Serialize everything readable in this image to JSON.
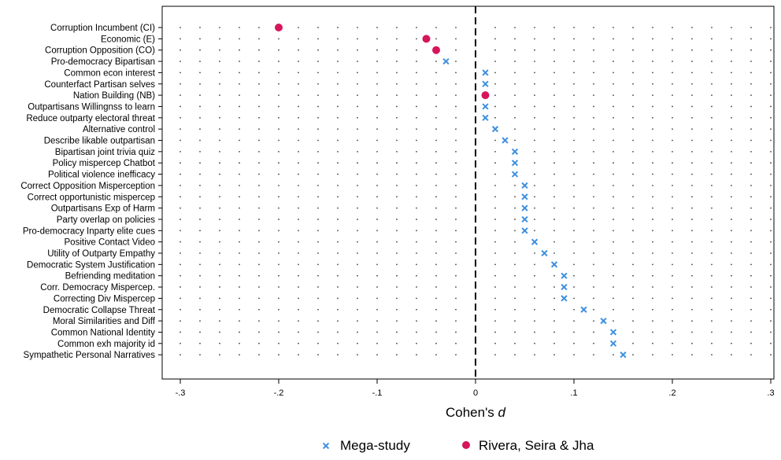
{
  "chart_data": {
    "type": "scatter",
    "title": "",
    "xlabel": "Cohen's d",
    "ylabel": "",
    "xlim": [
      -0.3,
      0.3
    ],
    "x_ticks": [
      -0.3,
      -0.2,
      -0.1,
      0,
      0.1,
      0.2,
      0.3
    ],
    "x_tick_labels": [
      "-.3",
      "-.2",
      "-.1",
      "0",
      ".1",
      ".2",
      ".3"
    ],
    "reference_line": 0,
    "grid": true,
    "legend_position": "bottom",
    "categories": [
      "Corruption Incumbent (CI)",
      "Economic (E)",
      "Corruption Opposition (CO)",
      "Pro-democracy Bipartisan",
      "Common econ interest",
      "Counterfact Partisan selves",
      "Nation Building (NB)",
      "Outpartisans Willingnss to learn",
      "Reduce outparty electoral threat",
      "Alternative control",
      "Describe likable outpartisan",
      "Bipartisan joint trivia quiz",
      "Policy mispercep Chatbot",
      "Political violence inefficacy",
      "Correct Opposition Misperception",
      "Correct opportunistic mispercep",
      "Outpartisans Exp of Harm",
      "Party overlap on policies",
      "Pro-democracy Inparty elite cues",
      "Positive Contact Video",
      "Utility of Outparty Empathy",
      "Democratic System Justification",
      "Befriending meditation",
      "Corr. Democracy Mispercep.",
      "Correcting Div Mispercep",
      "Democratic Collapse Threat",
      "Moral Similarities and Diff",
      "Common National Identity",
      "Common exh majority id",
      "Sympathetic Personal Narratives"
    ],
    "series": [
      {
        "name": "Mega-study",
        "marker": "x",
        "color": "#3d8fe0",
        "points": [
          {
            "category": "Pro-democracy Bipartisan",
            "x": -0.03
          },
          {
            "category": "Common econ interest",
            "x": 0.01
          },
          {
            "category": "Counterfact Partisan selves",
            "x": 0.01
          },
          {
            "category": "Outpartisans Willingnss to learn",
            "x": 0.01
          },
          {
            "category": "Reduce outparty electoral threat",
            "x": 0.01
          },
          {
            "category": "Alternative control",
            "x": 0.02
          },
          {
            "category": "Describe likable outpartisan",
            "x": 0.03
          },
          {
            "category": "Bipartisan joint trivia quiz",
            "x": 0.04
          },
          {
            "category": "Policy mispercep Chatbot",
            "x": 0.04
          },
          {
            "category": "Political violence inefficacy",
            "x": 0.04
          },
          {
            "category": "Correct Opposition Misperception",
            "x": 0.05
          },
          {
            "category": "Correct opportunistic mispercep",
            "x": 0.05
          },
          {
            "category": "Outpartisans Exp of Harm",
            "x": 0.05
          },
          {
            "category": "Party overlap on policies",
            "x": 0.05
          },
          {
            "category": "Pro-democracy Inparty elite cues",
            "x": 0.05
          },
          {
            "category": "Positive Contact Video",
            "x": 0.06
          },
          {
            "category": "Utility of Outparty Empathy",
            "x": 0.07
          },
          {
            "category": "Democratic System Justification",
            "x": 0.08
          },
          {
            "category": "Befriending meditation",
            "x": 0.09
          },
          {
            "category": "Corr. Democracy Mispercep.",
            "x": 0.09
          },
          {
            "category": "Correcting Div Mispercep",
            "x": 0.09
          },
          {
            "category": "Democratic Collapse Threat",
            "x": 0.11
          },
          {
            "category": "Moral Similarities and Diff",
            "x": 0.13
          },
          {
            "category": "Common National Identity",
            "x": 0.14
          },
          {
            "category": "Common exh majority id",
            "x": 0.14
          },
          {
            "category": "Sympathetic Personal Narratives",
            "x": 0.15
          }
        ]
      },
      {
        "name": "Rivera, Seira & Jha",
        "marker": "circle",
        "color": "#d6155a",
        "points": [
          {
            "category": "Corruption Incumbent (CI)",
            "x": -0.2
          },
          {
            "category": "Economic (E)",
            "x": -0.05
          },
          {
            "category": "Corruption Opposition (CO)",
            "x": -0.04
          },
          {
            "category": "Nation Building (NB)",
            "x": 0.01
          }
        ]
      }
    ]
  }
}
